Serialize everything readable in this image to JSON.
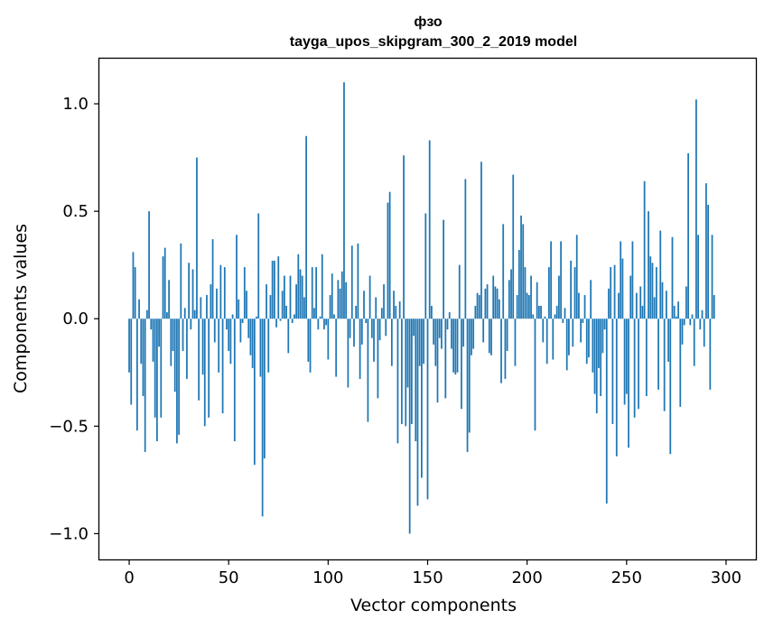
{
  "chart_data": {
    "type": "bar",
    "title": "фзо",
    "subtitle": "tayga_upos_skipgram_300_2_2019 model",
    "xlabel": "Vector components",
    "ylabel": "Components values",
    "xlim": [
      -15,
      315
    ],
    "ylim": [
      -1.12,
      1.21
    ],
    "xticks": [
      0,
      50,
      100,
      150,
      200,
      250,
      300
    ],
    "yticks": [
      -1.0,
      -0.5,
      0.0,
      0.5,
      1.0
    ],
    "ytick_labels": [
      "−1.0",
      "−0.5",
      "0.0",
      "0.5",
      "1.0"
    ],
    "bar_color": "#1f77b4",
    "grid": false,
    "legend": "none",
    "values": [
      -0.25,
      -0.4,
      0.31,
      0.24,
      -0.52,
      0.09,
      -0.21,
      -0.36,
      -0.62,
      0.04,
      0.5,
      -0.05,
      -0.2,
      -0.46,
      -0.57,
      -0.13,
      -0.46,
      0.29,
      0.33,
      0.03,
      0.18,
      -0.22,
      -0.15,
      -0.34,
      -0.58,
      -0.54,
      0.35,
      -0.15,
      0.05,
      -0.28,
      0.26,
      -0.05,
      0.23,
      0.04,
      0.75,
      -0.38,
      0.1,
      -0.26,
      -0.5,
      0.11,
      -0.46,
      0.16,
      0.37,
      -0.11,
      0.14,
      -0.25,
      0.25,
      -0.44,
      0.24,
      -0.05,
      -0.15,
      -0.21,
      0.02,
      -0.57,
      0.39,
      0.09,
      -0.11,
      -0.02,
      0.24,
      0.13,
      -0.09,
      -0.17,
      -0.23,
      -0.68,
      0.01,
      0.49,
      -0.27,
      -0.92,
      -0.65,
      0.16,
      -0.25,
      0.11,
      0.27,
      0.27,
      -0.04,
      0.29,
      -0.01,
      0.13,
      0.2,
      0.06,
      -0.16,
      0.2,
      -0.02,
      0.02,
      0.16,
      0.3,
      0.23,
      0.2,
      0.1,
      0.85,
      -0.2,
      -0.25,
      0.24,
      0.05,
      0.24,
      -0.05,
      0.01,
      0.3,
      -0.05,
      -0.03,
      -0.19,
      0.11,
      0.21,
      0.02,
      -0.27,
      0.18,
      0.14,
      0.22,
      1.1,
      0.17,
      -0.32,
      -0.09,
      0.34,
      -0.13,
      0.06,
      0.35,
      -0.28,
      -0.12,
      0.13,
      -0.02,
      -0.48,
      0.2,
      -0.09,
      -0.2,
      0.1,
      -0.37,
      -0.1,
      0.05,
      0.16,
      -0.08,
      0.54,
      0.59,
      -0.22,
      0.13,
      0.06,
      -0.58,
      0.08,
      -0.49,
      0.76,
      -0.5,
      -0.32,
      -1.0,
      -0.49,
      -0.08,
      -0.57,
      -0.87,
      -0.22,
      -0.74,
      -0.21,
      0.49,
      -0.84,
      0.83,
      0.06,
      -0.12,
      -0.22,
      -0.39,
      -0.09,
      -0.14,
      0.46,
      -0.37,
      -0.05,
      0.03,
      -0.14,
      -0.25,
      -0.26,
      -0.25,
      0.25,
      -0.42,
      -0.13,
      0.65,
      -0.62,
      -0.53,
      -0.17,
      -0.14,
      0.06,
      0.12,
      0.11,
      0.73,
      -0.11,
      0.14,
      0.16,
      -0.16,
      -0.17,
      0.2,
      0.15,
      0.14,
      0.09,
      -0.3,
      0.44,
      -0.28,
      -0.15,
      0.18,
      0.23,
      0.67,
      -0.22,
      0.11,
      0.32,
      0.48,
      0.44,
      0.24,
      0.12,
      0.11,
      0.2,
      0.02,
      -0.52,
      0.17,
      0.06,
      0.06,
      -0.11,
      0.01,
      -0.21,
      0.24,
      0.36,
      -0.19,
      0.02,
      0.06,
      0.2,
      0.36,
      -0.02,
      0.05,
      -0.24,
      -0.17,
      0.27,
      -0.13,
      0.24,
      0.39,
      0.12,
      -0.11,
      -0.02,
      0.11,
      -0.21,
      -0.18,
      0.18,
      -0.25,
      -0.35,
      -0.44,
      -0.23,
      -0.36,
      -0.16,
      -0.05,
      -0.86,
      0.14,
      0.24,
      -0.49,
      0.25,
      -0.64,
      0.12,
      0.36,
      0.28,
      -0.4,
      -0.35,
      -0.6,
      0.2,
      0.36,
      -0.46,
      0.12,
      -0.42,
      0.15,
      0.06,
      0.64,
      -0.36,
      0.5,
      0.29,
      0.26,
      0.1,
      0.24,
      -0.33,
      0.41,
      0.17,
      -0.43,
      0.13,
      -0.2,
      -0.63,
      0.38,
      0.06,
      0.01,
      0.08,
      -0.41,
      -0.12,
      -0.03,
      0.15,
      0.77,
      -0.03,
      0.02,
      -0.22,
      1.02,
      0.39,
      -0.05,
      0.04,
      -0.13,
      0.63,
      0.53,
      -0.33,
      0.39,
      0.11
    ]
  }
}
